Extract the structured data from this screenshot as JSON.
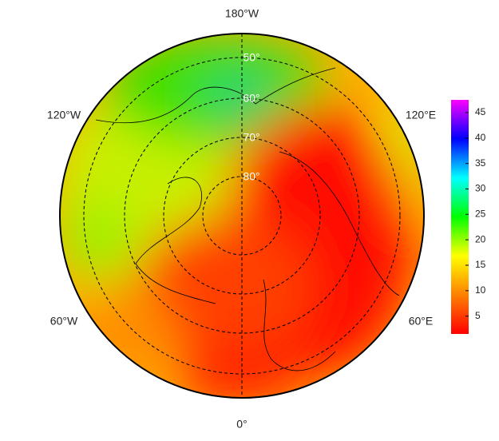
{
  "map": {
    "meridian_labels": [
      "180°W",
      "120°W",
      "120°E",
      "60°W",
      "60°E",
      "0°"
    ],
    "parallel_labels": [
      "50°",
      "60°",
      "70°",
      "80°"
    ],
    "colorbar": {
      "lim": [
        1.5,
        47.5
      ],
      "ticks": [
        5,
        10,
        15,
        20,
        25,
        30,
        35,
        40,
        45
      ],
      "colors": [
        "#ff0000",
        "#ff8000",
        "#ffff00",
        "#00ff00",
        "#00ffff",
        "#0000ff",
        "#ff00ff"
      ]
    }
  }
}
